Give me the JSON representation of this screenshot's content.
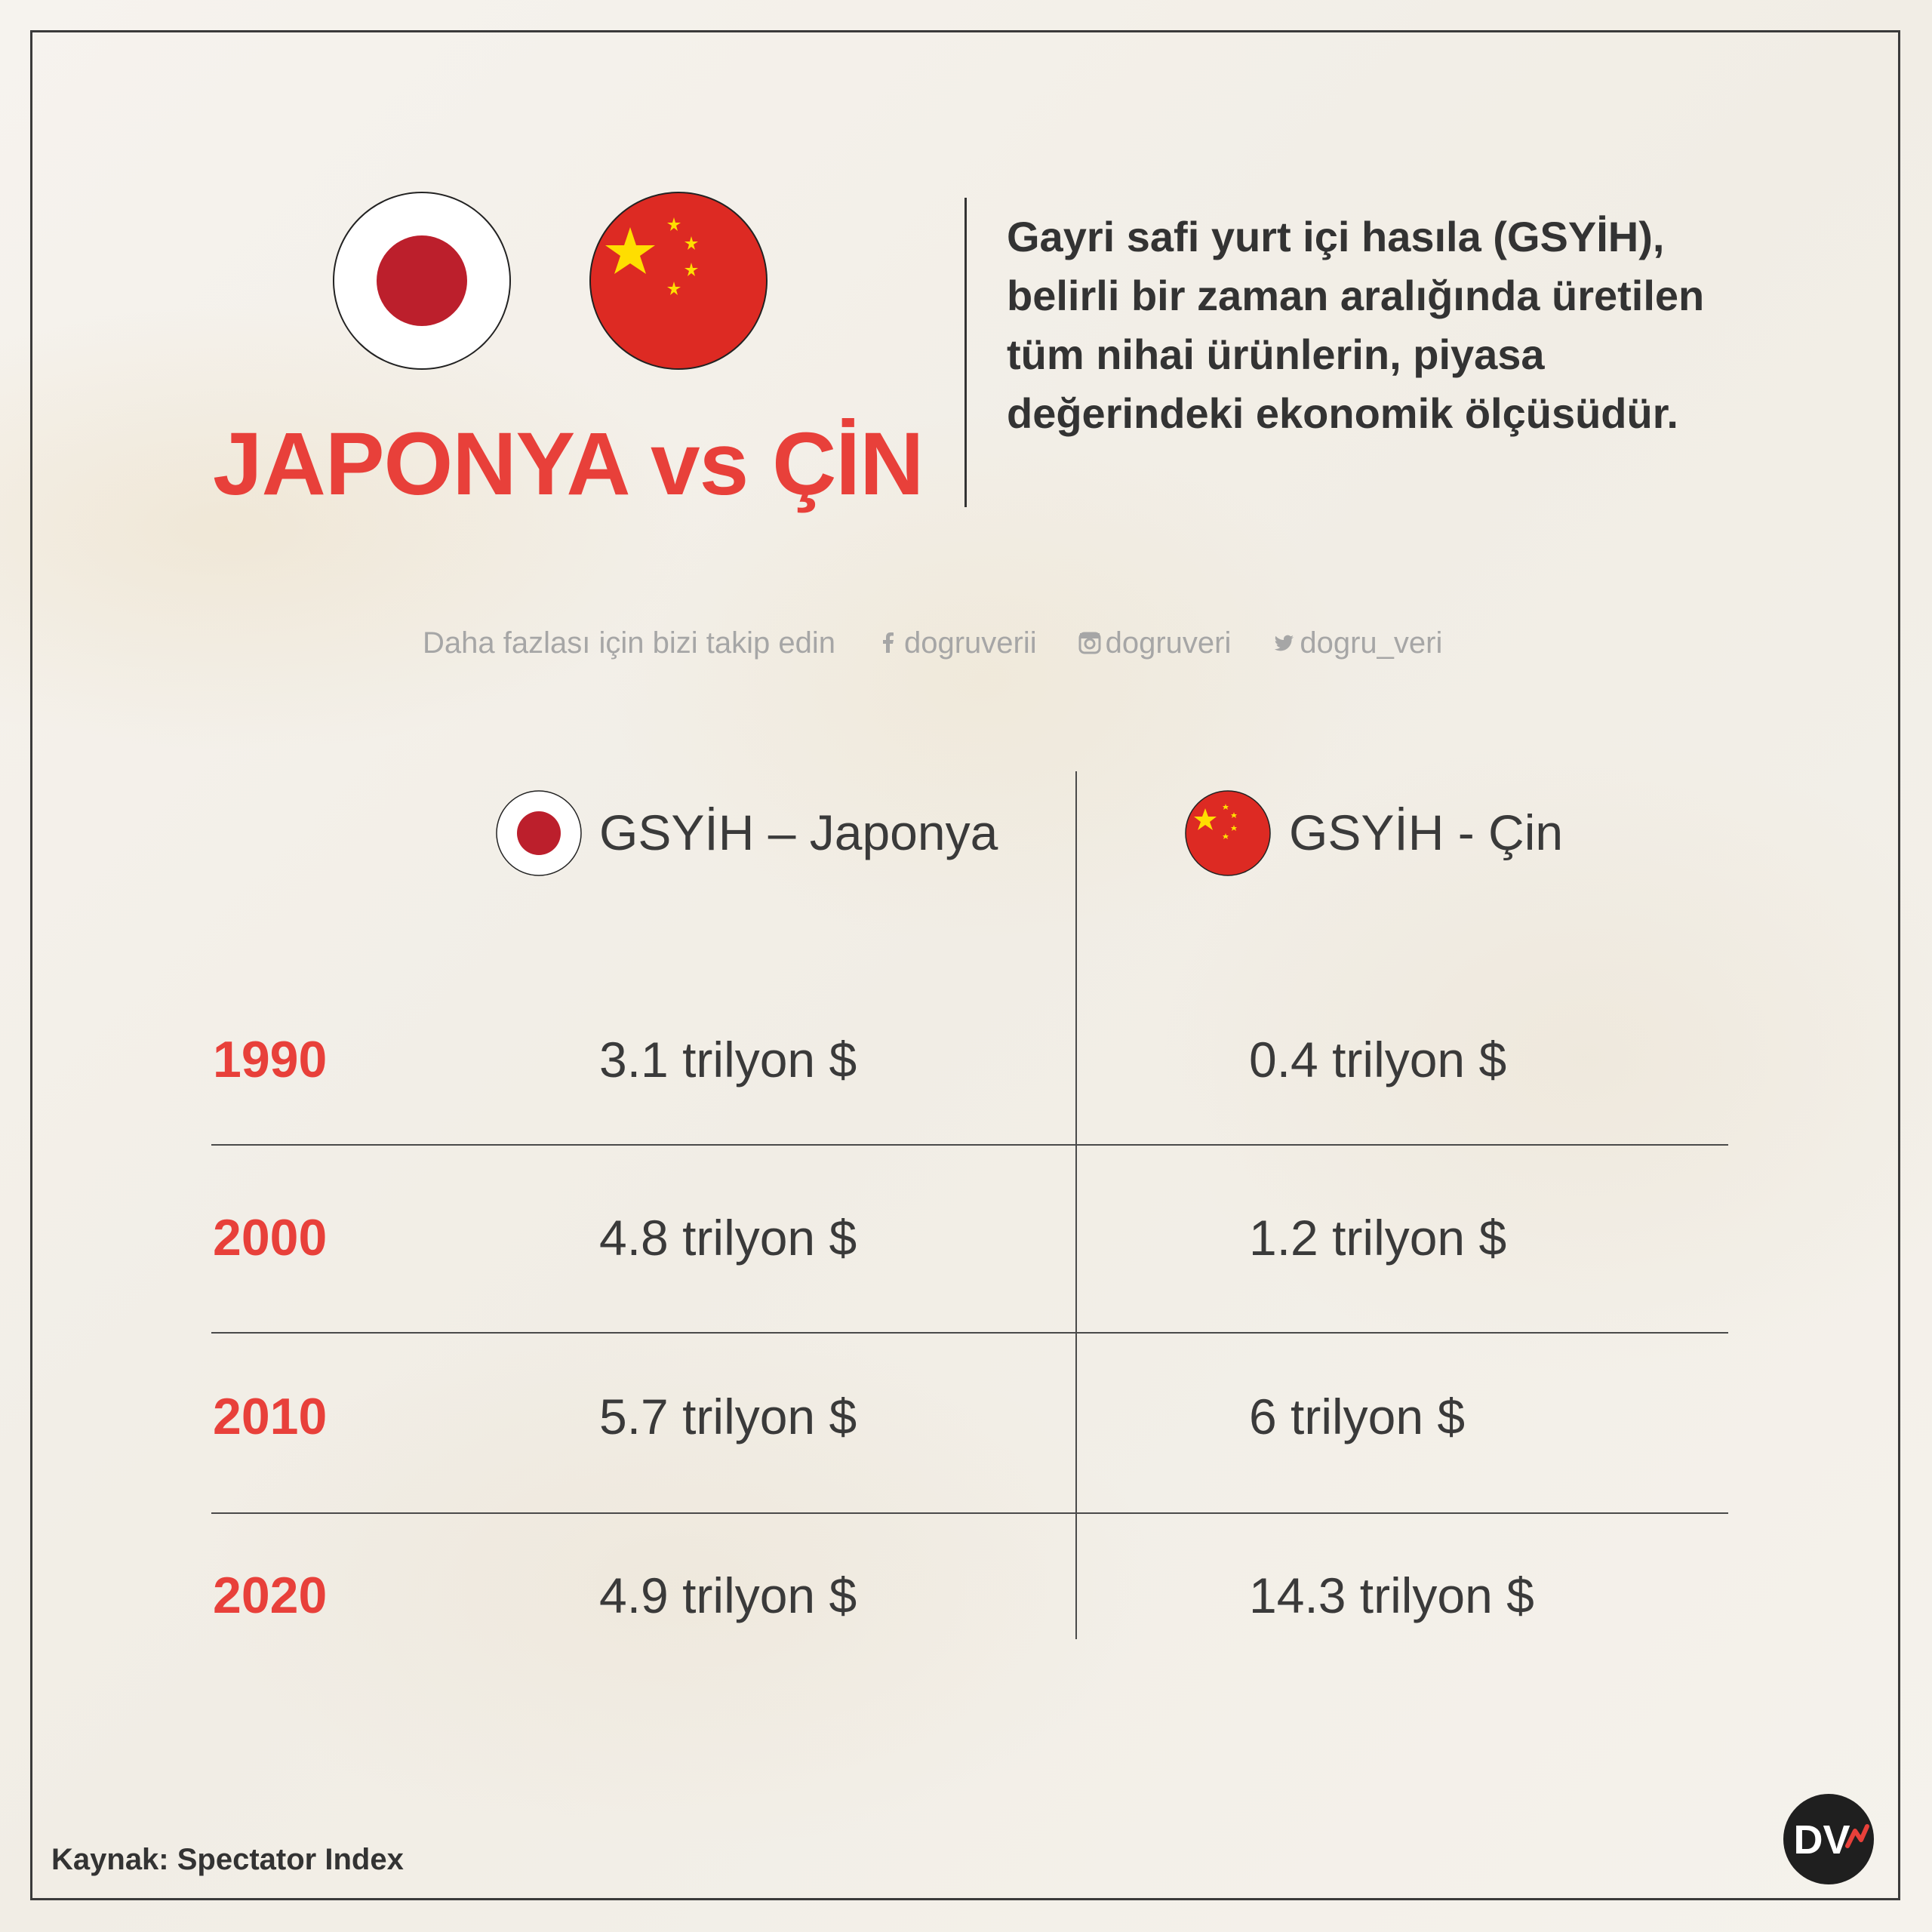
{
  "title": "JAPONYA vs ÇİN",
  "description": "Gayri safi yurt içi hasıla (GSYİH), belirli bir zaman aralığında üretilen tüm nihai ürünlerin, piyasa değerindeki ekonomik ölçüsüdür.",
  "social": {
    "intro": "Daha fazlası için bizi takip edin",
    "facebook": "dogruverii",
    "instagram": "dogruveri",
    "twitter": "dogru_veri"
  },
  "table": {
    "col_japan": "GSYİH – Japonya",
    "col_china": "GSYİH - Çin",
    "rows": [
      {
        "year": "1990",
        "japan": "3.1 trilyon $",
        "china": "0.4 trilyon $"
      },
      {
        "year": "2000",
        "japan": "4.8 trilyon $",
        "china": "1.2 trilyon $"
      },
      {
        "year": "2010",
        "japan": "5.7 trilyon $",
        "china": "6 trilyon $"
      },
      {
        "year": "2020",
        "japan": "4.9 trilyon $",
        "china": "14.3 trilyon $"
      }
    ]
  },
  "source": "Kaynak: Spectator Index",
  "logo_text": "DV",
  "colors": {
    "accent": "#e8403a",
    "japan_red": "#bc1f2c",
    "china_red": "#dd2a23",
    "china_star": "#ffde00",
    "text": "#333333",
    "background": "#f3f0ea"
  },
  "icons": [
    "japan-flag-icon",
    "china-flag-icon",
    "facebook-icon",
    "instagram-icon",
    "twitter-icon"
  ]
}
